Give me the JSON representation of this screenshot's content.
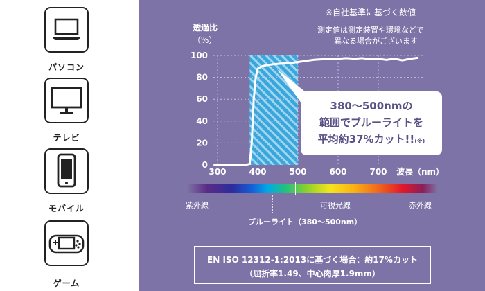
{
  "devices": [
    {
      "name": "laptop",
      "label": "パソコン"
    },
    {
      "name": "monitor",
      "label": "テレビ"
    },
    {
      "name": "phone",
      "label": "モバイル"
    },
    {
      "name": "gamepad",
      "label": "ゲーム"
    }
  ],
  "notes": {
    "line1": "※自社基準に基づく数値",
    "line2": "測定値は測定装置や環境などで",
    "line3": "異なる場合がございます"
  },
  "callout": {
    "line1": "380～500nmの",
    "line2": "範囲でブルーライトを",
    "line3": "平均約37%カット!!",
    "mark": "(※)"
  },
  "spectrum": {
    "left_label": "紫外線",
    "mid_label": "可視光線",
    "right_label": "赤外線",
    "bracket_label": "ブルーライト（380～500nm）"
  },
  "iso": {
    "line1": "EN ISO 12312-1:2013に基づく場合：約17%カット",
    "line2": "（屈折率1.49、中心肉厚1.9mm）"
  },
  "chart_data": {
    "type": "line",
    "ylabel": "透過比",
    "yunit": "（%）",
    "xlabel": "波長（nm）",
    "x_ticks": [
      300,
      400,
      500,
      600,
      700
    ],
    "y_ticks": [
      0,
      20,
      40,
      60,
      80,
      100
    ],
    "xlim": [
      290,
      800
    ],
    "ylim": [
      0,
      100
    ],
    "highlight_range": [
      380,
      500
    ],
    "grid": true,
    "line_color": "#ffffff",
    "highlight_color": "#3aa6dc",
    "series": [
      {
        "x": [
          290,
          370,
          380,
          385,
          390,
          395,
          400,
          410,
          420,
          440,
          460,
          480,
          500,
          520,
          540,
          560,
          580,
          600,
          620,
          640,
          660,
          680,
          700,
          720,
          740,
          760,
          780,
          800
        ],
        "y": [
          0,
          0,
          1,
          20,
          60,
          80,
          88,
          90,
          91,
          92,
          92.5,
          93,
          94,
          95,
          96,
          96.5,
          97,
          97,
          97.5,
          97,
          97.5,
          96.5,
          97,
          96,
          97,
          95.5,
          97,
          98
        ]
      }
    ]
  }
}
